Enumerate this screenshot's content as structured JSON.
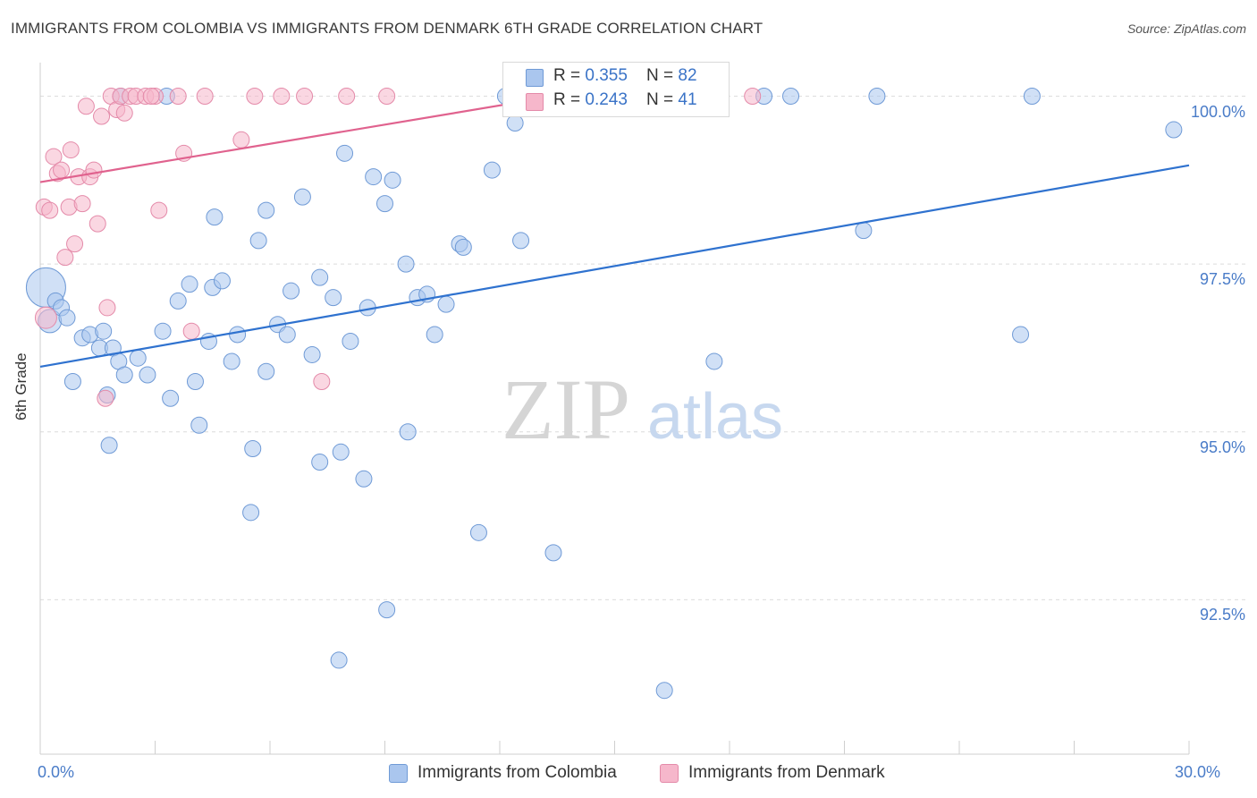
{
  "title": "IMMIGRANTS FROM COLOMBIA VS IMMIGRANTS FROM DENMARK 6TH GRADE CORRELATION CHART",
  "source": "Source: ZipAtlas.com",
  "watermark": {
    "zip": "ZIP",
    "atlas": "atlas"
  },
  "legend": {
    "colombia": {
      "r_label": "R = ",
      "r_value": "0.355",
      "n_label": "N = ",
      "n_value": "82"
    },
    "denmark": {
      "r_label": "R = ",
      "r_value": "0.243",
      "n_label": "N = ",
      "n_value": "41"
    }
  },
  "chart_data": {
    "type": "scatter",
    "title": "IMMIGRANTS FROM COLOMBIA VS IMMIGRANTS FROM DENMARK 6TH GRADE CORRELATION CHART",
    "xlabel": "",
    "ylabel": "6th Grade",
    "xlim": [
      0,
      30
    ],
    "ylim": [
      90.2,
      100.5
    ],
    "x_tick_labels": [
      {
        "value": 0,
        "label": "0.0%"
      },
      {
        "value": 30,
        "label": "30.0%"
      }
    ],
    "y_tick_labels": [
      {
        "value": 100,
        "label": "100.0%"
      },
      {
        "value": 97.5,
        "label": "97.5%"
      },
      {
        "value": 95,
        "label": "95.0%"
      },
      {
        "value": 92.5,
        "label": "92.5%"
      }
    ],
    "colors": {
      "colombia_fill": "#aac6ee",
      "colombia_line": "#2f72cf",
      "denmark_fill": "#f6b7cb",
      "denmark_line": "#e0628e"
    },
    "series": [
      {
        "name": "Immigrants from Colombia",
        "r": 0.355,
        "n": 82,
        "trend": {
          "x": [
            0,
            30
          ],
          "y": [
            95.97,
            98.97
          ]
        },
        "points": [
          [
            0.15,
            97.15
          ],
          [
            0.25,
            96.65
          ],
          [
            0.4,
            96.95
          ],
          [
            0.55,
            96.85
          ],
          [
            0.7,
            96.7
          ],
          [
            0.85,
            95.75
          ],
          [
            1.1,
            96.4
          ],
          [
            1.3,
            96.45
          ],
          [
            1.55,
            96.25
          ],
          [
            1.65,
            96.5
          ],
          [
            1.9,
            96.25
          ],
          [
            2.05,
            96.05
          ],
          [
            2.2,
            95.85
          ],
          [
            1.75,
            95.55
          ],
          [
            2.55,
            96.1
          ],
          [
            2.8,
            95.85
          ],
          [
            3.2,
            96.5
          ],
          [
            3.4,
            95.5
          ],
          [
            3.6,
            96.95
          ],
          [
            3.9,
            97.2
          ],
          [
            4.05,
            95.75
          ],
          [
            4.15,
            95.1
          ],
          [
            4.4,
            96.35
          ],
          [
            4.5,
            97.15
          ],
          [
            4.75,
            97.25
          ],
          [
            5.0,
            96.05
          ],
          [
            5.15,
            96.45
          ],
          [
            5.55,
            94.75
          ],
          [
            5.7,
            97.85
          ],
          [
            5.9,
            95.9
          ],
          [
            6.2,
            96.6
          ],
          [
            6.45,
            96.45
          ],
          [
            6.55,
            97.1
          ],
          [
            6.85,
            98.5
          ],
          [
            7.1,
            96.15
          ],
          [
            7.3,
            97.3
          ],
          [
            7.3,
            94.55
          ],
          [
            7.65,
            97.0
          ],
          [
            7.85,
            94.7
          ],
          [
            7.95,
            99.15
          ],
          [
            8.1,
            96.35
          ],
          [
            8.45,
            94.3
          ],
          [
            8.55,
            96.85
          ],
          [
            8.7,
            98.8
          ],
          [
            9.0,
            98.4
          ],
          [
            9.05,
            92.35
          ],
          [
            9.2,
            98.75
          ],
          [
            9.55,
            97.5
          ],
          [
            9.6,
            95.0
          ],
          [
            9.85,
            97.0
          ],
          [
            10.1,
            97.05
          ],
          [
            10.3,
            96.45
          ],
          [
            10.6,
            96.9
          ],
          [
            10.95,
            97.8
          ],
          [
            11.05,
            97.75
          ],
          [
            11.45,
            93.5
          ],
          [
            11.8,
            98.9
          ],
          [
            12.15,
            100.0
          ],
          [
            12.55,
            97.85
          ],
          [
            13.4,
            93.2
          ],
          [
            14.7,
            100.0
          ],
          [
            17.6,
            96.05
          ],
          [
            18.9,
            100.0
          ],
          [
            19.6,
            100.0
          ],
          [
            21.5,
            98.0
          ],
          [
            21.85,
            100.0
          ],
          [
            25.6,
            96.45
          ],
          [
            25.9,
            100.0
          ],
          [
            29.6,
            99.5
          ],
          [
            4.55,
            98.2
          ],
          [
            5.9,
            98.3
          ],
          [
            3.3,
            100.0
          ],
          [
            2.1,
            100.0
          ],
          [
            1.8,
            94.8
          ],
          [
            5.5,
            93.8
          ],
          [
            7.8,
            91.6
          ],
          [
            16.3,
            91.15
          ],
          [
            12.4,
            99.6
          ]
        ]
      },
      {
        "name": "Immigrants from Denmark",
        "r": 0.243,
        "n": 41,
        "trend": {
          "x": [
            0,
            14.5
          ],
          "y": [
            98.72,
            100.1
          ]
        },
        "points": [
          [
            0.1,
            98.35
          ],
          [
            0.15,
            96.7
          ],
          [
            0.25,
            98.3
          ],
          [
            0.35,
            99.1
          ],
          [
            0.45,
            98.85
          ],
          [
            0.55,
            98.9
          ],
          [
            0.65,
            97.6
          ],
          [
            0.75,
            98.35
          ],
          [
            0.8,
            99.2
          ],
          [
            0.9,
            97.8
          ],
          [
            1.0,
            98.8
          ],
          [
            1.1,
            98.4
          ],
          [
            1.2,
            99.85
          ],
          [
            1.3,
            98.8
          ],
          [
            1.4,
            98.9
          ],
          [
            1.5,
            98.1
          ],
          [
            1.6,
            99.7
          ],
          [
            1.75,
            96.85
          ],
          [
            1.85,
            100.0
          ],
          [
            2.0,
            99.8
          ],
          [
            2.1,
            100.0
          ],
          [
            2.2,
            99.75
          ],
          [
            2.35,
            100.0
          ],
          [
            2.5,
            100.0
          ],
          [
            2.75,
            100.0
          ],
          [
            3.0,
            100.0
          ],
          [
            3.1,
            98.3
          ],
          [
            3.6,
            100.0
          ],
          [
            3.75,
            99.15
          ],
          [
            3.95,
            96.5
          ],
          [
            4.3,
            100.0
          ],
          [
            5.25,
            99.35
          ],
          [
            5.6,
            100.0
          ],
          [
            6.3,
            100.0
          ],
          [
            6.9,
            100.0
          ],
          [
            7.35,
            95.75
          ],
          [
            8.0,
            100.0
          ],
          [
            9.05,
            100.0
          ],
          [
            18.6,
            100.0
          ],
          [
            1.7,
            95.5
          ],
          [
            2.9,
            100.0
          ]
        ]
      }
    ]
  },
  "bottom_legend": {
    "colombia": "Immigrants from Colombia",
    "denmark": "Immigrants from Denmark"
  }
}
